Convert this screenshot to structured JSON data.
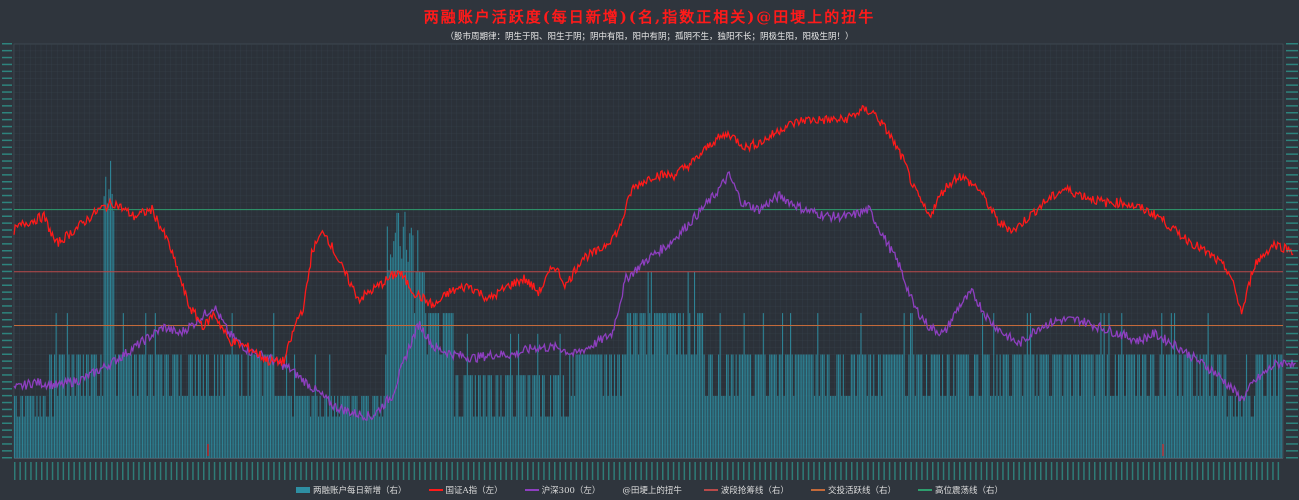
{
  "title": "两融账户活跃度(每日新增)(名,指数正相关)@田埂上的扭牛",
  "subtitle": "（股市周期律：阴生于阳、阳生于阴；阴中有阳，阳中有阴；孤阴不生，独阳不长；阴极生阳，阳极生阴！）",
  "chart_data": {
    "type": "line",
    "x_points": 300,
    "ylim_left": [
      2000,
      8000
    ],
    "ylim_right": [
      0,
      10
    ],
    "grid": true,
    "legend_position": "bottom",
    "reference_lines": [
      {
        "name": "波段抢筹线（右）",
        "value": 4.5,
        "color": "#b94a4a"
      },
      {
        "name": "交投活跃线（右）",
        "value": 3.2,
        "color": "#c46a3a"
      },
      {
        "name": "高位震荡线（右）",
        "value": 6.0,
        "color": "#2e9e6e"
      }
    ],
    "series": [
      {
        "name": "国证A指（左）",
        "color": "#ff1a1a",
        "axis": "left",
        "keypoints": [
          [
            0,
            5300
          ],
          [
            10,
            5400
          ],
          [
            30,
            5500
          ],
          [
            42,
            5100
          ],
          [
            60,
            5300
          ],
          [
            85,
            5600
          ],
          [
            100,
            5700
          ],
          [
            120,
            5500
          ],
          [
            138,
            5600
          ],
          [
            155,
            5100
          ],
          [
            175,
            4200
          ],
          [
            190,
            3900
          ],
          [
            200,
            4100
          ],
          [
            215,
            3700
          ],
          [
            235,
            3600
          ],
          [
            255,
            3400
          ],
          [
            270,
            3400
          ],
          [
            283,
            4000
          ],
          [
            290,
            4200
          ],
          [
            298,
            5000
          ],
          [
            310,
            5300
          ],
          [
            330,
            4700
          ],
          [
            345,
            4300
          ],
          [
            365,
            4500
          ],
          [
            385,
            4700
          ],
          [
            400,
            4400
          ],
          [
            420,
            4200
          ],
          [
            435,
            4400
          ],
          [
            455,
            4500
          ],
          [
            475,
            4300
          ],
          [
            495,
            4500
          ],
          [
            510,
            4600
          ],
          [
            525,
            4400
          ],
          [
            540,
            4800
          ],
          [
            552,
            4500
          ],
          [
            568,
            4900
          ],
          [
            585,
            5000
          ],
          [
            605,
            5300
          ],
          [
            618,
            5900
          ],
          [
            640,
            6100
          ],
          [
            660,
            6100
          ],
          [
            680,
            6300
          ],
          [
            700,
            6600
          ],
          [
            715,
            6700
          ],
          [
            732,
            6500
          ],
          [
            750,
            6600
          ],
          [
            770,
            6800
          ],
          [
            790,
            6900
          ],
          [
            810,
            6900
          ],
          [
            830,
            6900
          ],
          [
            850,
            7050
          ],
          [
            860,
            7000
          ],
          [
            875,
            6700
          ],
          [
            890,
            6300
          ],
          [
            900,
            5900
          ],
          [
            915,
            5500
          ],
          [
            930,
            5900
          ],
          [
            945,
            6100
          ],
          [
            965,
            5900
          ],
          [
            985,
            5400
          ],
          [
            1000,
            5300
          ],
          [
            1015,
            5500
          ],
          [
            1030,
            5700
          ],
          [
            1050,
            5900
          ],
          [
            1070,
            5800
          ],
          [
            1090,
            5700
          ],
          [
            1110,
            5700
          ],
          [
            1130,
            5600
          ],
          [
            1145,
            5500
          ],
          [
            1160,
            5300
          ],
          [
            1180,
            5100
          ],
          [
            1200,
            4900
          ],
          [
            1215,
            4700
          ],
          [
            1228,
            4100
          ],
          [
            1240,
            4800
          ],
          [
            1260,
            5100
          ],
          [
            1280,
            5000
          ]
        ]
      },
      {
        "name": "沪深300（左）",
        "color": "#8e3fc0",
        "axis": "left",
        "keypoints": [
          [
            0,
            3000
          ],
          [
            20,
            3100
          ],
          [
            45,
            3050
          ],
          [
            70,
            3150
          ],
          [
            100,
            3400
          ],
          [
            130,
            3700
          ],
          [
            150,
            3900
          ],
          [
            165,
            3800
          ],
          [
            180,
            3950
          ],
          [
            200,
            4200
          ],
          [
            215,
            3800
          ],
          [
            235,
            3550
          ],
          [
            255,
            3450
          ],
          [
            275,
            3300
          ],
          [
            300,
            3000
          ],
          [
            320,
            2750
          ],
          [
            340,
            2650
          ],
          [
            358,
            2600
          ],
          [
            378,
            2900
          ],
          [
            395,
            3600
          ],
          [
            405,
            3950
          ],
          [
            420,
            3600
          ],
          [
            440,
            3500
          ],
          [
            460,
            3450
          ],
          [
            480,
            3500
          ],
          [
            500,
            3500
          ],
          [
            520,
            3600
          ],
          [
            545,
            3600
          ],
          [
            560,
            3500
          ],
          [
            580,
            3650
          ],
          [
            598,
            3800
          ],
          [
            612,
            4600
          ],
          [
            635,
            4900
          ],
          [
            655,
            5100
          ],
          [
            675,
            5400
          ],
          [
            700,
            5800
          ],
          [
            715,
            6100
          ],
          [
            728,
            5700
          ],
          [
            745,
            5600
          ],
          [
            765,
            5800
          ],
          [
            790,
            5600
          ],
          [
            815,
            5500
          ],
          [
            835,
            5500
          ],
          [
            855,
            5600
          ],
          [
            870,
            5200
          ],
          [
            885,
            4800
          ],
          [
            900,
            4200
          ],
          [
            915,
            3900
          ],
          [
            930,
            3800
          ],
          [
            945,
            4200
          ],
          [
            958,
            4400
          ],
          [
            975,
            4000
          ],
          [
            990,
            3800
          ],
          [
            1005,
            3650
          ],
          [
            1025,
            3900
          ],
          [
            1045,
            4000
          ],
          [
            1065,
            4000
          ],
          [
            1085,
            3900
          ],
          [
            1105,
            3800
          ],
          [
            1125,
            3700
          ],
          [
            1140,
            3800
          ],
          [
            1160,
            3650
          ],
          [
            1180,
            3450
          ],
          [
            1200,
            3250
          ],
          [
            1215,
            3050
          ],
          [
            1228,
            2850
          ],
          [
            1240,
            3100
          ],
          [
            1260,
            3350
          ],
          [
            1275,
            3400
          ],
          [
            1282,
            3300
          ]
        ]
      },
      {
        "name": "两融账户每日新增（右）",
        "color": "#2e8fa3",
        "axis": "right",
        "type": "bar",
        "levels": [
          [
            0,
            1.0
          ],
          [
            40,
            2.0
          ],
          [
            95,
            5.0
          ],
          [
            100,
            2.0
          ],
          [
            260,
            1.0
          ],
          [
            370,
            3.0
          ],
          [
            385,
            4.0
          ],
          [
            410,
            3.0
          ],
          [
            440,
            1.5
          ],
          [
            555,
            2.0
          ],
          [
            610,
            3.0
          ],
          [
            620,
            3.0
          ],
          [
            690,
            2.0
          ],
          [
            1120,
            2.0
          ],
          [
            1210,
            1.0
          ],
          [
            1240,
            2.0
          ],
          [
            1282,
            1.0
          ]
        ]
      }
    ],
    "extra_legend": [
      "@田埂上的扭牛"
    ]
  },
  "legend": [
    {
      "label": "两融账户每日新增（右）",
      "color": "#2e8fa3",
      "kind": "bar"
    },
    {
      "label": "国证A指（左）",
      "color": "#ff1a1a",
      "kind": "line"
    },
    {
      "label": "沪深300（左）",
      "color": "#8e3fc0",
      "kind": "line"
    },
    {
      "label": "@田埂上的扭牛",
      "color": "#2f353d",
      "kind": "none"
    },
    {
      "label": "波段抢筹线（右）",
      "color": "#b94a4a",
      "kind": "line"
    },
    {
      "label": "交投活跃线（右）",
      "color": "#c46a3a",
      "kind": "line"
    },
    {
      "label": "高位震荡线（右）",
      "color": "#2e9e6e",
      "kind": "line"
    }
  ]
}
